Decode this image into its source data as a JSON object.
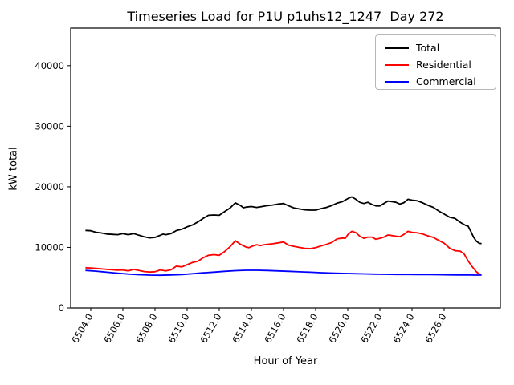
{
  "chart_data": {
    "type": "line",
    "title": "Timeseries Load for P1U p1uhs12_1247  Day 272",
    "xlabel": "Hour of Year",
    "ylabel": "kW total",
    "xlim": [
      6502.75,
      6529.5
    ],
    "ylim": [
      0,
      46200
    ],
    "grid": false,
    "legend_position": "upper right",
    "xticks": [
      {
        "v": 6504,
        "label": "6504.0"
      },
      {
        "v": 6506,
        "label": "6506.0"
      },
      {
        "v": 6508,
        "label": "6508.0"
      },
      {
        "v": 6510,
        "label": "6510.0"
      },
      {
        "v": 6512,
        "label": "6512.0"
      },
      {
        "v": 6514,
        "label": "6514.0"
      },
      {
        "v": 6516,
        "label": "6516.0"
      },
      {
        "v": 6518,
        "label": "6518.0"
      },
      {
        "v": 6520,
        "label": "6520.0"
      },
      {
        "v": 6522,
        "label": "6522.0"
      },
      {
        "v": 6524,
        "label": "6524.0"
      },
      {
        "v": 6526,
        "label": "6526.0"
      }
    ],
    "yticks": [
      {
        "v": 0,
        "label": "0"
      },
      {
        "v": 10000,
        "label": "10000"
      },
      {
        "v": 20000,
        "label": "20000"
      },
      {
        "v": 30000,
        "label": "30000"
      },
      {
        "v": 40000,
        "label": "40000"
      }
    ],
    "series": [
      {
        "name": "Total",
        "color": "#000000",
        "points": [
          [
            6503.67,
            12800
          ],
          [
            6504.0,
            12750
          ],
          [
            6504.33,
            12500
          ],
          [
            6504.67,
            12380
          ],
          [
            6505.0,
            12200
          ],
          [
            6505.33,
            12150
          ],
          [
            6505.67,
            12100
          ],
          [
            6506.0,
            12280
          ],
          [
            6506.33,
            12100
          ],
          [
            6506.67,
            12280
          ],
          [
            6507.0,
            12010
          ],
          [
            6507.33,
            11750
          ],
          [
            6507.67,
            11570
          ],
          [
            6508.0,
            11650
          ],
          [
            6508.33,
            12010
          ],
          [
            6508.5,
            12190
          ],
          [
            6508.67,
            12100
          ],
          [
            6509.0,
            12280
          ],
          [
            6509.33,
            12780
          ],
          [
            6509.67,
            13000
          ],
          [
            6510.0,
            13400
          ],
          [
            6510.33,
            13700
          ],
          [
            6510.67,
            14200
          ],
          [
            6511.0,
            14800
          ],
          [
            6511.33,
            15300
          ],
          [
            6511.67,
            15350
          ],
          [
            6512.0,
            15300
          ],
          [
            6512.33,
            15900
          ],
          [
            6512.67,
            16500
          ],
          [
            6513.0,
            17350
          ],
          [
            6513.33,
            16900
          ],
          [
            6513.5,
            16550
          ],
          [
            6513.67,
            16650
          ],
          [
            6514.0,
            16750
          ],
          [
            6514.33,
            16600
          ],
          [
            6514.67,
            16750
          ],
          [
            6515.0,
            16900
          ],
          [
            6515.33,
            17000
          ],
          [
            6515.67,
            17150
          ],
          [
            6516.0,
            17250
          ],
          [
            6516.33,
            16850
          ],
          [
            6516.67,
            16500
          ],
          [
            6517.0,
            16350
          ],
          [
            6517.33,
            16200
          ],
          [
            6517.67,
            16150
          ],
          [
            6518.0,
            16150
          ],
          [
            6518.33,
            16400
          ],
          [
            6518.67,
            16600
          ],
          [
            6519.0,
            16900
          ],
          [
            6519.33,
            17300
          ],
          [
            6519.67,
            17550
          ],
          [
            6520.0,
            18050
          ],
          [
            6520.25,
            18350
          ],
          [
            6520.5,
            17950
          ],
          [
            6520.75,
            17450
          ],
          [
            6521.0,
            17250
          ],
          [
            6521.25,
            17450
          ],
          [
            6521.5,
            17100
          ],
          [
            6521.75,
            16850
          ],
          [
            6522.0,
            16850
          ],
          [
            6522.25,
            17250
          ],
          [
            6522.5,
            17650
          ],
          [
            6522.75,
            17550
          ],
          [
            6523.0,
            17450
          ],
          [
            6523.25,
            17150
          ],
          [
            6523.5,
            17400
          ],
          [
            6523.75,
            17950
          ],
          [
            6524.0,
            17800
          ],
          [
            6524.33,
            17700
          ],
          [
            6524.67,
            17350
          ],
          [
            6525.0,
            16950
          ],
          [
            6525.33,
            16600
          ],
          [
            6525.67,
            16000
          ],
          [
            6526.0,
            15500
          ],
          [
            6526.33,
            15000
          ],
          [
            6526.67,
            14800
          ],
          [
            6527.0,
            14150
          ],
          [
            6527.33,
            13650
          ],
          [
            6527.5,
            13490
          ],
          [
            6527.67,
            12600
          ],
          [
            6527.83,
            11700
          ],
          [
            6528.0,
            11050
          ],
          [
            6528.17,
            10700
          ],
          [
            6528.33,
            10620
          ]
        ]
      },
      {
        "name": "Residential",
        "color": "#ff0000",
        "points": [
          [
            6503.67,
            6650
          ],
          [
            6504.0,
            6600
          ],
          [
            6504.33,
            6520
          ],
          [
            6504.67,
            6450
          ],
          [
            6505.0,
            6380
          ],
          [
            6505.33,
            6300
          ],
          [
            6505.67,
            6250
          ],
          [
            6506.0,
            6280
          ],
          [
            6506.33,
            6110
          ],
          [
            6506.67,
            6370
          ],
          [
            6507.0,
            6200
          ],
          [
            6507.33,
            6010
          ],
          [
            6507.67,
            5930
          ],
          [
            6508.0,
            5980
          ],
          [
            6508.33,
            6280
          ],
          [
            6508.67,
            6110
          ],
          [
            6509.0,
            6300
          ],
          [
            6509.33,
            6900
          ],
          [
            6509.67,
            6780
          ],
          [
            6510.0,
            7150
          ],
          [
            6510.33,
            7500
          ],
          [
            6510.67,
            7700
          ],
          [
            6511.0,
            8300
          ],
          [
            6511.33,
            8700
          ],
          [
            6511.67,
            8800
          ],
          [
            6512.0,
            8700
          ],
          [
            6512.33,
            9300
          ],
          [
            6512.67,
            10100
          ],
          [
            6513.0,
            11100
          ],
          [
            6513.33,
            10500
          ],
          [
            6513.67,
            10050
          ],
          [
            6513.85,
            9950
          ],
          [
            6514.1,
            10250
          ],
          [
            6514.33,
            10450
          ],
          [
            6514.55,
            10300
          ],
          [
            6514.8,
            10450
          ],
          [
            6515.0,
            10500
          ],
          [
            6515.33,
            10600
          ],
          [
            6515.67,
            10750
          ],
          [
            6516.0,
            10900
          ],
          [
            6516.33,
            10350
          ],
          [
            6516.67,
            10150
          ],
          [
            6517.0,
            10000
          ],
          [
            6517.33,
            9850
          ],
          [
            6517.67,
            9800
          ],
          [
            6518.0,
            9950
          ],
          [
            6518.33,
            10250
          ],
          [
            6518.67,
            10500
          ],
          [
            6519.0,
            10800
          ],
          [
            6519.33,
            11400
          ],
          [
            6519.67,
            11550
          ],
          [
            6519.85,
            11500
          ],
          [
            6520.0,
            12100
          ],
          [
            6520.25,
            12650
          ],
          [
            6520.5,
            12450
          ],
          [
            6520.75,
            11850
          ],
          [
            6521.0,
            11500
          ],
          [
            6521.25,
            11700
          ],
          [
            6521.5,
            11700
          ],
          [
            6521.75,
            11350
          ],
          [
            6522.0,
            11500
          ],
          [
            6522.25,
            11700
          ],
          [
            6522.5,
            12050
          ],
          [
            6522.75,
            11950
          ],
          [
            6523.0,
            11850
          ],
          [
            6523.25,
            11750
          ],
          [
            6523.5,
            12150
          ],
          [
            6523.75,
            12650
          ],
          [
            6524.0,
            12500
          ],
          [
            6524.33,
            12400
          ],
          [
            6524.67,
            12200
          ],
          [
            6525.0,
            11900
          ],
          [
            6525.33,
            11650
          ],
          [
            6525.67,
            11150
          ],
          [
            6526.0,
            10700
          ],
          [
            6526.33,
            9900
          ],
          [
            6526.67,
            9450
          ],
          [
            6527.0,
            9380
          ],
          [
            6527.25,
            8900
          ],
          [
            6527.5,
            7750
          ],
          [
            6527.75,
            6800
          ],
          [
            6528.0,
            6000
          ],
          [
            6528.17,
            5630
          ],
          [
            6528.33,
            5560
          ]
        ]
      },
      {
        "name": "Commercial",
        "color": "#0000ff",
        "points": [
          [
            6503.67,
            6200
          ],
          [
            6504.33,
            6080
          ],
          [
            6505.0,
            5900
          ],
          [
            6505.67,
            5750
          ],
          [
            6506.33,
            5600
          ],
          [
            6507.0,
            5500
          ],
          [
            6507.67,
            5430
          ],
          [
            6508.33,
            5400
          ],
          [
            6509.0,
            5450
          ],
          [
            6509.67,
            5520
          ],
          [
            6510.33,
            5650
          ],
          [
            6511.0,
            5800
          ],
          [
            6511.67,
            5920
          ],
          [
            6512.33,
            6050
          ],
          [
            6513.0,
            6150
          ],
          [
            6513.67,
            6220
          ],
          [
            6514.33,
            6220
          ],
          [
            6515.0,
            6180
          ],
          [
            6515.67,
            6120
          ],
          [
            6516.33,
            6050
          ],
          [
            6517.0,
            5970
          ],
          [
            6517.67,
            5900
          ],
          [
            6518.33,
            5830
          ],
          [
            6519.0,
            5760
          ],
          [
            6519.67,
            5700
          ],
          [
            6520.33,
            5660
          ],
          [
            6521.0,
            5620
          ],
          [
            6521.67,
            5590
          ],
          [
            6522.33,
            5560
          ],
          [
            6523.0,
            5540
          ],
          [
            6523.67,
            5530
          ],
          [
            6524.33,
            5520
          ],
          [
            6525.0,
            5510
          ],
          [
            6525.67,
            5490
          ],
          [
            6526.33,
            5470
          ],
          [
            6527.0,
            5460
          ],
          [
            6527.67,
            5440
          ],
          [
            6528.0,
            5430
          ],
          [
            6528.33,
            5430
          ]
        ]
      }
    ]
  }
}
